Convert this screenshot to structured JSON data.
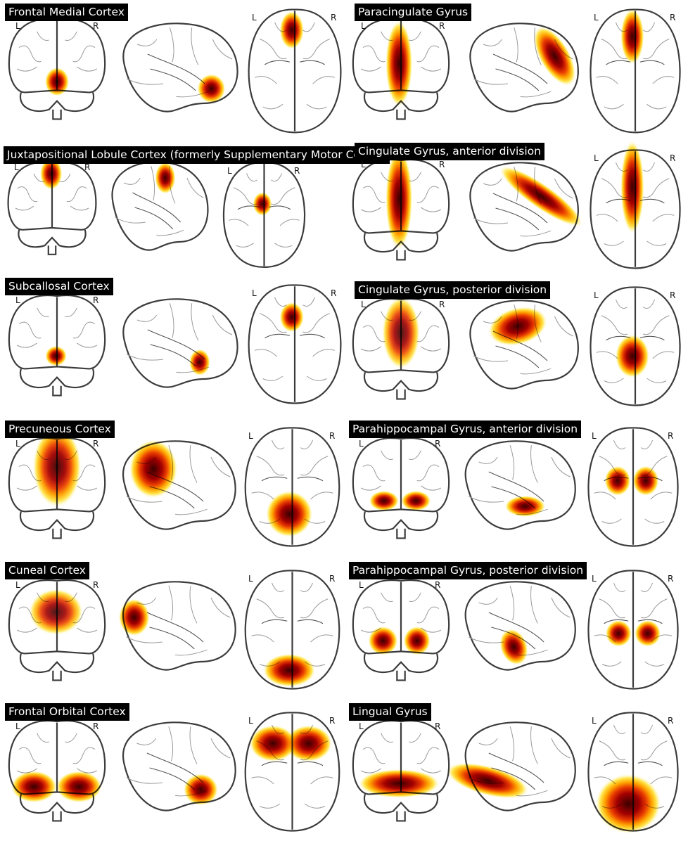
{
  "labels": {
    "left": "L",
    "right": "R"
  },
  "colormap": [
    "#fffbe0",
    "#ffe64d",
    "#ffa500",
    "#e83a00",
    "#a30000",
    "#3a0000"
  ],
  "panels": [
    {
      "title": "Frontal Medial Cortex"
    },
    {
      "title": "Paracingulate Gyrus"
    },
    {
      "title": "Juxtapositional Lobule Cortex (formerly Supplementary Motor Cortex)"
    },
    {
      "title": "Cingulate Gyrus, anterior division"
    },
    {
      "title": "Subcallosal Cortex"
    },
    {
      "title": "Cingulate Gyrus, posterior division"
    },
    {
      "title": "Precuneous Cortex"
    },
    {
      "title": "Parahippocampal Gyrus, anterior division"
    },
    {
      "title": "Cuneal Cortex"
    },
    {
      "title": "Parahippocampal Gyrus, posterior division"
    },
    {
      "title": "Frontal Orbital Cortex"
    },
    {
      "title": "Lingual Gyrus"
    }
  ]
}
